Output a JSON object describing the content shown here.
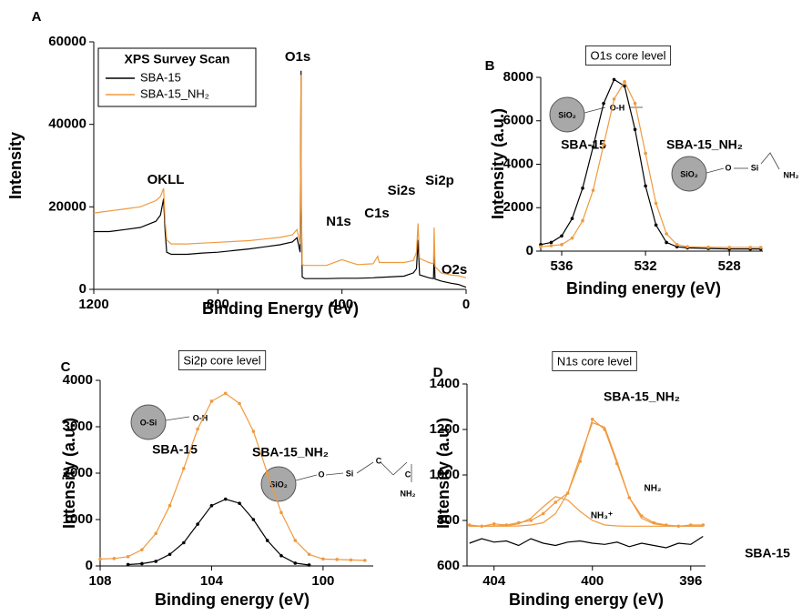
{
  "chart_data": [
    {
      "type": "line",
      "panel": "A",
      "legend_title": "XPS Survey Scan",
      "legend": "upper left",
      "xlabel": "Binding Energy (eV)",
      "ylabel": "Intensity",
      "x": [
        1200,
        1150,
        1100,
        1050,
        1000,
        985,
        975,
        970,
        965,
        950,
        900,
        850,
        800,
        750,
        700,
        650,
        600,
        560,
        545,
        535,
        532,
        531,
        528,
        520,
        500,
        450,
        400,
        350,
        300,
        285,
        280,
        250,
        200,
        170,
        160,
        155,
        150,
        120,
        105,
        103,
        100,
        80,
        50,
        25,
        10,
        0
      ],
      "xlim": [
        1200,
        0
      ],
      "xticks": [
        1200,
        800,
        400,
        0
      ],
      "ylim": [
        0,
        60000
      ],
      "yticks": [
        0,
        20000,
        40000,
        60000
      ],
      "series": [
        {
          "name": "SBA-15",
          "color": "#000000",
          "values": [
            14000,
            14000,
            14500,
            15000,
            16500,
            18000,
            22000,
            14000,
            9000,
            8500,
            8500,
            8800,
            9000,
            9400,
            9800,
            10300,
            10800,
            11500,
            12500,
            9000,
            53000,
            20000,
            3000,
            2600,
            2600,
            2600,
            2700,
            2700,
            2800,
            2900,
            2900,
            3000,
            3200,
            4000,
            5000,
            12000,
            3500,
            2800,
            2600,
            9000,
            2500,
            2000,
            1500,
            1200,
            800,
            500
          ]
        },
        {
          "name": "SBA-15_NH₂",
          "color": "#f09a3e",
          "values": [
            18500,
            19000,
            19500,
            20000,
            21500,
            22500,
            24500,
            16500,
            12000,
            11000,
            11000,
            11200,
            11400,
            11600,
            11800,
            12200,
            12600,
            13200,
            14500,
            11000,
            52000,
            22000,
            6000,
            5800,
            5800,
            5800,
            7200,
            6000,
            6200,
            8000,
            6500,
            6500,
            6500,
            7000,
            9000,
            16000,
            7500,
            6500,
            6200,
            15000,
            5500,
            4000,
            3500,
            3300,
            3000,
            2800
          ]
        }
      ],
      "annotations": [
        "OKLL",
        "O1s",
        "N1s",
        "C1s",
        "Si2s",
        "Si2p",
        "O2s"
      ]
    },
    {
      "type": "line",
      "panel": "B",
      "title": "O1s core level",
      "xlabel": "Binding energy (eV)",
      "ylabel": "Intensity (a.u.)",
      "x": [
        537,
        536.5,
        536,
        535.5,
        535,
        534.5,
        534,
        533.5,
        533,
        532.5,
        532,
        531.5,
        531,
        530.5,
        530,
        529,
        528,
        527,
        526.5
      ],
      "xlim": [
        537,
        526.4
      ],
      "xticks": [
        536,
        532,
        528
      ],
      "ylim": [
        0,
        8000
      ],
      "yticks": [
        0,
        2000,
        4000,
        6000,
        8000
      ],
      "series": [
        {
          "name": "SBA-15",
          "color": "#000000",
          "markers": true,
          "values": [
            300,
            400,
            700,
            1500,
            2900,
            4800,
            6800,
            7900,
            7600,
            5600,
            3000,
            1200,
            400,
            200,
            150,
            120,
            100,
            100,
            100
          ]
        },
        {
          "name": "SBA-15_NH₂",
          "color": "#f09a3e",
          "markers": true,
          "values": [
            200,
            250,
            300,
            600,
            1400,
            2800,
            4900,
            7000,
            7800,
            6800,
            4500,
            2200,
            800,
            300,
            200,
            180,
            170,
            170,
            170
          ]
        }
      ],
      "annotations": [
        "SiO₂",
        "O-H",
        "SiO₂",
        "O",
        "Si",
        "NH₂"
      ]
    },
    {
      "type": "line",
      "panel": "C",
      "title": "Si2p core level",
      "xlabel": "Binding energy (eV)",
      "ylabel": "Intensity (a.u.)",
      "x": [
        108,
        107.5,
        107,
        106.5,
        106,
        105.5,
        105,
        104.5,
        104,
        103.5,
        103,
        102.5,
        102,
        101.5,
        101,
        100.5,
        100,
        99.5,
        99,
        98.5
      ],
      "xlim": [
        108,
        98.2
      ],
      "xticks": [
        108,
        104,
        100
      ],
      "ylim": [
        0,
        4000
      ],
      "yticks": [
        0,
        1000,
        2000,
        3000,
        4000
      ],
      "series": [
        {
          "name": "SBA-15",
          "color": "#000000",
          "markers": true,
          "values": [
            null,
            null,
            30,
            50,
            100,
            250,
            500,
            900,
            1300,
            1440,
            1350,
            1000,
            550,
            220,
            60,
            20,
            null,
            null,
            null,
            null
          ]
        },
        {
          "name": "SBA-15_NH₂",
          "color": "#f09a3e",
          "markers": true,
          "values": [
            150,
            160,
            200,
            350,
            700,
            1300,
            2100,
            2950,
            3550,
            3720,
            3500,
            2900,
            2000,
            1150,
            550,
            250,
            150,
            140,
            130,
            120
          ]
        }
      ],
      "annotations": [
        "O-Si",
        "O-H",
        "SiO₂",
        "O",
        "Si",
        "C",
        "C",
        "NH₂"
      ]
    },
    {
      "type": "line",
      "panel": "D",
      "title": "N1s core level",
      "xlabel": "Binding energy (eV)",
      "ylabel": "Intensity (a.u.)",
      "x": [
        405,
        404.5,
        404,
        403.5,
        403,
        402.5,
        402,
        401.5,
        401,
        400.5,
        400,
        399.5,
        399,
        398.5,
        398,
        397.5,
        397,
        396.5,
        396,
        395.5
      ],
      "xlim": [
        405.1,
        395.4
      ],
      "xticks": [
        404,
        400,
        396
      ],
      "ylim": [
        600,
        1400
      ],
      "yticks": [
        600,
        800,
        1000,
        1200,
        1400
      ],
      "series": [
        {
          "name": "SBA-15_NH₂",
          "color": "#f09a3e",
          "markers": true,
          "values": [
            780,
            775,
            785,
            780,
            790,
            800,
            830,
            880,
            920,
            1060,
            1245,
            1200,
            1050,
            900,
            820,
            790,
            780,
            775,
            780,
            780
          ]
        },
        {
          "name": "NH₃⁺",
          "color": "#f09a3e",
          "values": [
            775,
            775,
            776,
            778,
            785,
            810,
            860,
            905,
            890,
            840,
            800,
            780,
            776,
            775,
            775,
            775,
            775,
            775,
            775,
            775
          ]
        },
        {
          "name": "NH₂",
          "color": "#f09a3e",
          "values": [
            775,
            775,
            775,
            775,
            776,
            780,
            790,
            830,
            920,
            1080,
            1230,
            1210,
            1060,
            900,
            810,
            785,
            778,
            776,
            775,
            775
          ]
        },
        {
          "name": "SBA-15",
          "color": "#000000",
          "values": [
            700,
            720,
            705,
            710,
            690,
            720,
            700,
            690,
            705,
            710,
            700,
            695,
            705,
            685,
            700,
            690,
            680,
            700,
            695,
            730
          ]
        }
      ]
    }
  ]
}
